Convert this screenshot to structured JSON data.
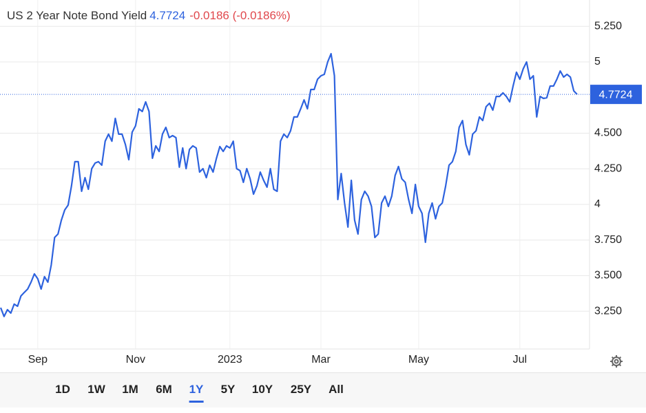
{
  "chart_data": {
    "type": "line",
    "title": "US 2 Year Note Bond Yield",
    "last_value": 4.7724,
    "change": -0.0186,
    "change_percent_label": "(-0.0186%)",
    "categories": [
      null,
      null,
      null,
      null,
      null,
      null,
      null,
      null,
      null,
      null,
      null,
      "Sep",
      null,
      null,
      null,
      null,
      null,
      null,
      null,
      null,
      null,
      null,
      null,
      null,
      null,
      null,
      null,
      null,
      null,
      null,
      null,
      null,
      null,
      null,
      null,
      null,
      null,
      null,
      null,
      null,
      "Nov",
      null,
      null,
      null,
      null,
      null,
      null,
      null,
      null,
      null,
      null,
      null,
      null,
      null,
      null,
      null,
      null,
      null,
      null,
      null,
      null,
      null,
      null,
      null,
      null,
      null,
      null,
      null,
      "2023",
      null,
      null,
      null,
      null,
      null,
      null,
      null,
      null,
      null,
      null,
      null,
      null,
      null,
      null,
      null,
      null,
      null,
      null,
      null,
      null,
      null,
      null,
      null,
      null,
      null,
      null,
      "Mar",
      null,
      null,
      null,
      null,
      null,
      null,
      null,
      null,
      null,
      null,
      null,
      null,
      null,
      null,
      null,
      null,
      null,
      null,
      null,
      null,
      null,
      null,
      null,
      null,
      null,
      null,
      null,
      null,
      "May",
      null,
      null,
      null,
      null,
      null,
      null,
      null,
      null,
      null,
      null,
      null,
      null,
      null,
      null,
      null,
      null,
      null,
      null,
      null,
      null,
      null,
      null,
      null,
      null,
      null,
      null,
      null,
      null,
      null,
      "Jul",
      null,
      null,
      null,
      null,
      null,
      null,
      null,
      null,
      null,
      null,
      null,
      null,
      null,
      null,
      null,
      null,
      null
    ],
    "values": [
      3.275,
      3.213,
      3.261,
      3.237,
      3.3,
      3.285,
      3.357,
      3.382,
      3.406,
      3.454,
      3.512,
      3.478,
      3.406,
      3.493,
      3.454,
      3.575,
      3.768,
      3.792,
      3.889,
      3.961,
      3.995,
      4.13,
      4.3,
      4.3,
      4.092,
      4.188,
      4.106,
      4.251,
      4.29,
      4.3,
      4.275,
      4.444,
      4.493,
      4.444,
      4.604,
      4.493,
      4.493,
      4.42,
      4.314,
      4.507,
      4.551,
      4.671,
      4.652,
      4.72,
      4.652,
      4.324,
      4.411,
      4.372,
      4.493,
      4.541,
      4.469,
      4.483,
      4.469,
      4.261,
      4.396,
      4.251,
      4.386,
      4.411,
      4.396,
      4.227,
      4.251,
      4.188,
      4.275,
      4.227,
      4.324,
      4.406,
      4.372,
      4.411,
      4.396,
      4.444,
      4.251,
      4.237,
      4.155,
      4.251,
      4.179,
      4.072,
      4.13,
      4.227,
      4.169,
      4.121,
      4.251,
      4.106,
      4.092,
      4.444,
      4.493,
      4.469,
      4.517,
      4.614,
      4.614,
      4.671,
      4.734,
      4.671,
      4.807,
      4.807,
      4.879,
      4.903,
      4.913,
      5.0,
      5.058,
      4.903,
      4.034,
      4.217,
      4.01,
      3.841,
      4.169,
      3.889,
      3.792,
      4.034,
      4.092,
      4.058,
      3.986,
      3.768,
      3.792,
      4.01,
      4.058,
      3.986,
      4.058,
      4.203,
      4.266,
      4.179,
      4.155,
      4.034,
      3.937,
      4.14,
      3.986,
      3.937,
      3.734,
      3.937,
      4.01,
      3.899,
      3.986,
      4.01,
      4.13,
      4.275,
      4.3,
      4.372,
      4.541,
      4.589,
      4.42,
      4.348,
      4.493,
      4.517,
      4.614,
      4.589,
      4.686,
      4.71,
      4.662,
      4.758,
      4.758,
      4.783,
      4.758,
      4.72,
      4.831,
      4.928,
      4.879,
      4.952,
      5.0,
      4.879,
      4.903,
      4.614,
      4.758,
      4.744,
      4.749,
      4.831,
      4.831,
      4.879,
      4.937,
      4.894,
      4.913,
      4.894,
      4.797,
      4.7724
    ],
    "color": "#2d62de",
    "ylim": [
      2.985,
      5.435
    ],
    "yticks": [
      {
        "value": 3.25,
        "label": "3.250"
      },
      {
        "value": 3.5,
        "label": "3.500"
      },
      {
        "value": 3.75,
        "label": "3.750"
      },
      4,
      {
        "value": 4.25,
        "label": "4.250"
      },
      {
        "value": 4.5,
        "label": "4.500"
      },
      5,
      {
        "value": 5.25,
        "label": "5.250"
      }
    ],
    "grid": true,
    "range_buttons": [
      "1D",
      "1W",
      "1M",
      "6M",
      "1Y",
      "5Y",
      "10Y",
      "25Y",
      "All"
    ],
    "active_range": "1Y"
  }
}
